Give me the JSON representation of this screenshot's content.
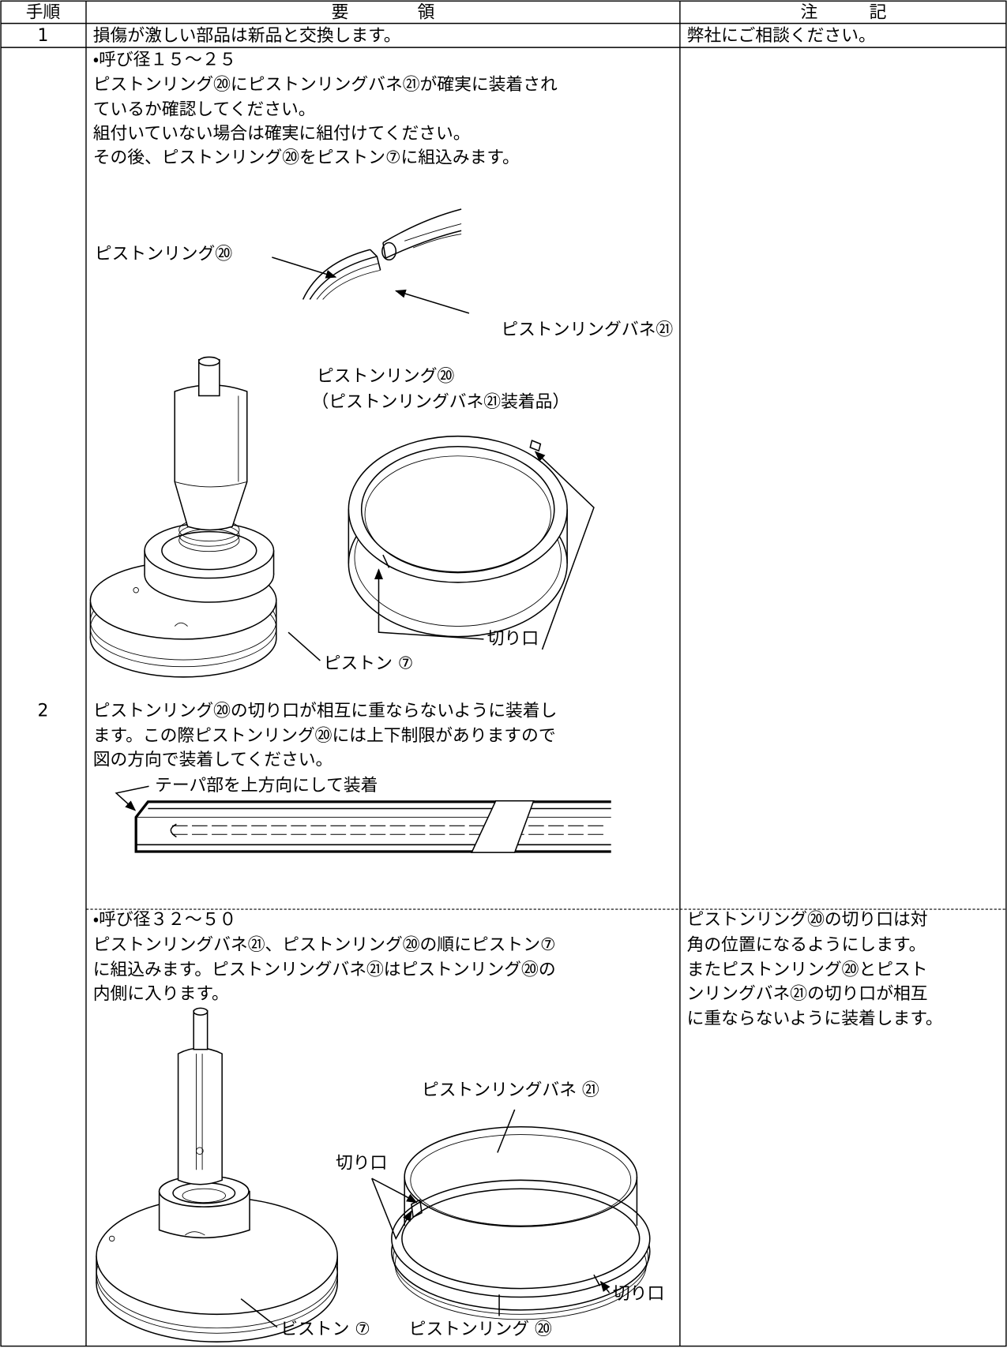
{
  "table": {
    "header": [
      "手順",
      "要　　　　領",
      "注　　　記"
    ],
    "rows": [
      {
        "step": "1",
        "procedure": "損傷が激しい部品は新品と交換します。",
        "notes": "弊社にご相談ください。"
      },
      {
        "step": "2",
        "size_a": {
          "heading": "・呼び径１５～２５",
          "lines": [
            "ピストンリング⑳にピストンリングバネ㉑が確実に装着され",
            "ているか確認してください。",
            "組付いていない場合は確実に組付けてください。",
            "その後、ピストンリング⑳をピストン⑦に組込みます。"
          ],
          "labels": {
            "ring": "ピストンリング⑳",
            "spring": "ピストンリングバネ㉑",
            "ring_caption": "ピストンリング⑳",
            "ring_caption_sub": "（ピストンリングバネ㉑装着品）",
            "cut": "切り口",
            "piston": "ピストン ⑦"
          },
          "lines_after": [
            "ピストンリング⑳の切り口が相互に重ならないように装着し",
            "ます。この際ピストンリング⑳には上下制限がありますので",
            "図の方向で装着してください。"
          ],
          "taper_label": "テーパ部を上方向にして装着"
        },
        "size_b": {
          "heading": "・呼び径３２～５０",
          "lines": [
            "ピストンリングバネ㉑、ピストンリング⑳の順にピストン⑦",
            "に組込みます。ピストンリングバネ㉑はピストンリング⑳の",
            "内側に入ります。"
          ],
          "notes": [
            "ピストンリング⑳の切り口は対",
            "角の位置になるようにします。",
            "またピストンリング⑳とピスト",
            "ンリングバネ㉑の切り口が相互",
            "に重ならないように装着します。"
          ],
          "labels": {
            "spring": "ピストンリングバネ ㉑",
            "cut_left": "切り口",
            "cut_right": "切り口",
            "piston": "ビストン ⑦",
            "ring": "ピストンリング ⑳"
          }
        }
      }
    ]
  }
}
